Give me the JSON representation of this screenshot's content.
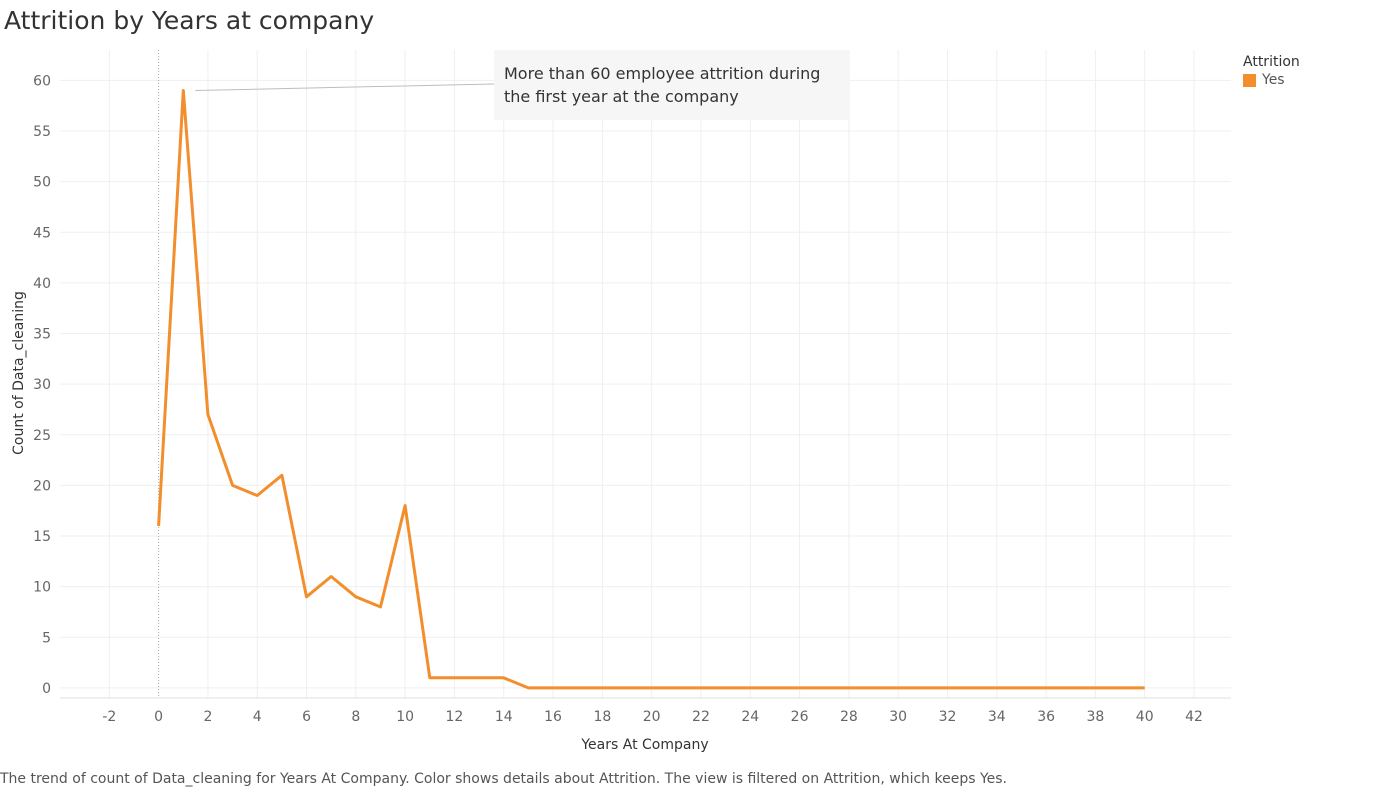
{
  "chart_data": {
    "type": "line",
    "title": "Attrition by Years at company",
    "xlabel": "Years At Company",
    "ylabel": "Count of Data_cleaning",
    "xlim": [
      -4,
      43.5
    ],
    "ylim": [
      -1,
      63
    ],
    "x_ticks": [
      -2,
      0,
      2,
      4,
      6,
      8,
      10,
      12,
      14,
      16,
      18,
      20,
      22,
      24,
      26,
      28,
      30,
      32,
      34,
      36,
      38,
      40,
      42
    ],
    "y_ticks": [
      0,
      5,
      10,
      15,
      20,
      25,
      30,
      35,
      40,
      45,
      50,
      55,
      60
    ],
    "grid": true,
    "legend": {
      "title": "Attrition",
      "position": "top-right",
      "entries": [
        {
          "label": "Yes",
          "color": "#F28E2B"
        }
      ]
    },
    "series": [
      {
        "name": "Yes",
        "color": "#F28E2B",
        "x": [
          0,
          1,
          2,
          3,
          4,
          5,
          6,
          7,
          8,
          9,
          10,
          11,
          12,
          13,
          14,
          15,
          16,
          17,
          18,
          19,
          20,
          21,
          22,
          23,
          24,
          25,
          26,
          27,
          28,
          29,
          30,
          31,
          32,
          33,
          34,
          35,
          36,
          37,
          38,
          39,
          40
        ],
        "values": [
          16,
          59,
          27,
          20,
          19,
          21,
          9,
          11,
          9,
          8,
          18,
          1,
          1,
          1,
          1,
          0,
          0,
          0,
          0,
          0,
          0,
          0,
          0,
          0,
          0,
          0,
          0,
          0,
          0,
          0,
          0,
          0,
          0,
          0,
          0,
          0,
          0,
          0,
          0,
          0,
          0
        ]
      }
    ],
    "annotation": {
      "text_line1": "More than 60 employee attrition during",
      "text_line2": "the first year at the company",
      "points_to_x": 1,
      "points_to_y": 59
    },
    "caption": "The trend of count of Data_cleaning for Years At Company.  Color shows details about Attrition. The view is filtered on Attrition, which keeps Yes."
  }
}
